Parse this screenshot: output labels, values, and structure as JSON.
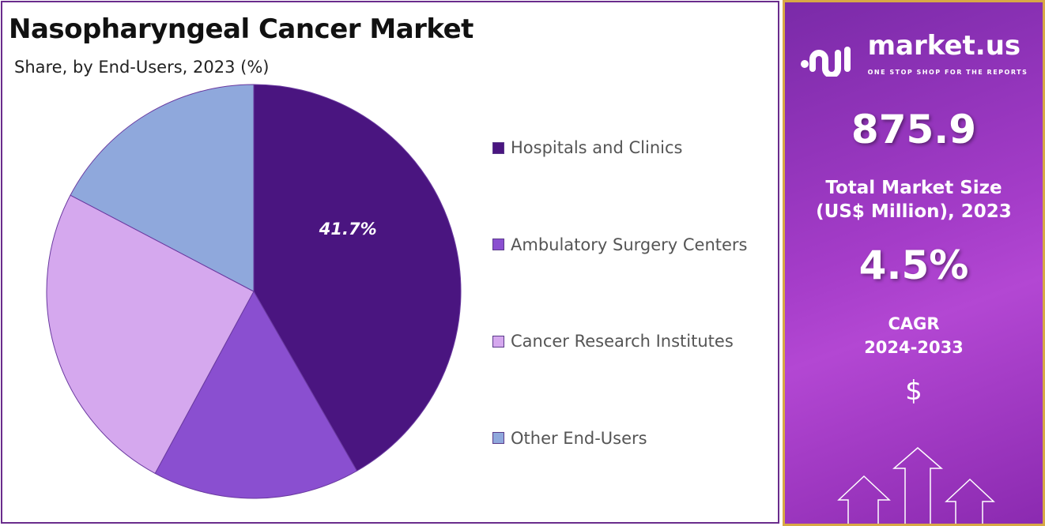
{
  "chart_data": {
    "type": "pie",
    "title": "Nasopharyngeal Cancer Market",
    "subtitle": "Share, by End-Users, 2023 (%)",
    "categories": [
      "Hospitals and Clinics",
      "Ambulatory Surgery Centers",
      "Cancer Research Institutes",
      "Other End-Users"
    ],
    "values": [
      41.7,
      16.2,
      24.8,
      17.3
    ],
    "data_labels": [
      "41.7%",
      "",
      "",
      ""
    ],
    "colors": [
      "#4a1580",
      "#8a4fd0",
      "#d5a8ee",
      "#8fa8dc"
    ],
    "legend_position": "right"
  },
  "side_panel": {
    "logo_name": "market.us",
    "logo_tagline": "ONE STOP SHOP FOR THE REPORTS",
    "market_size": "875.9",
    "market_size_label_1": "Total Market Size",
    "market_size_label_2": "(US$ Million), 2023",
    "cagr": "4.5%",
    "cagr_label": "CAGR",
    "cagr_period": "2024-2033",
    "currency_symbol": "$"
  }
}
